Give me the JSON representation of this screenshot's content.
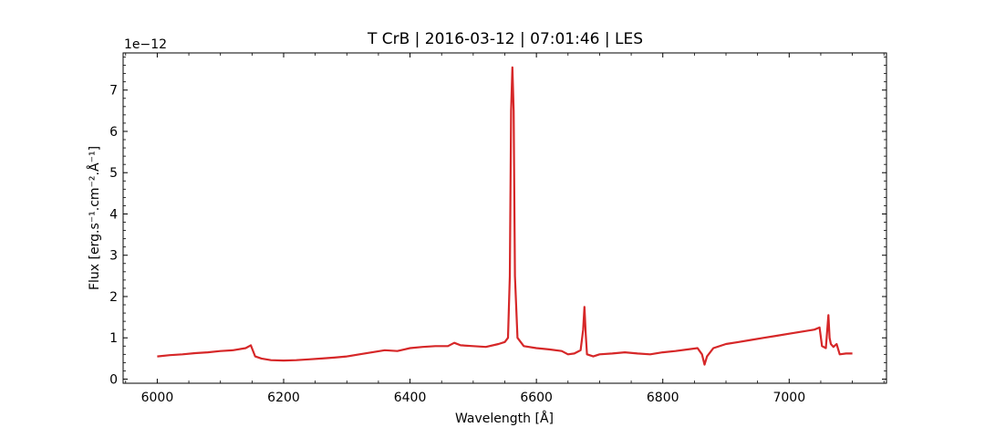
{
  "chart_data": {
    "type": "line",
    "title": "T CrB | 2016-03-12 | 07:01:46 | LES",
    "xlabel": "Wavelength [Å]",
    "ylabel": "Flux [erg.s⁻¹.cm⁻².Å⁻¹]",
    "y_offset_text": "1e−12",
    "xlim": [
      5946,
      7154
    ],
    "ylim": [
      -0.1,
      7.9
    ],
    "x_ticks": [
      6000,
      6200,
      6400,
      6600,
      6800,
      7000
    ],
    "y_ticks": [
      0,
      1,
      2,
      3,
      4,
      5,
      6,
      7
    ],
    "grid": false,
    "color": "#d62728",
    "series": [
      {
        "x": [
          6000,
          6020,
          6040,
          6060,
          6080,
          6100,
          6120,
          6140,
          6148,
          6155,
          6165,
          6180,
          6200,
          6220,
          6240,
          6260,
          6280,
          6300,
          6320,
          6340,
          6360,
          6380,
          6400,
          6420,
          6440,
          6460,
          6470,
          6480,
          6500,
          6520,
          6540,
          6550,
          6555,
          6558,
          6560,
          6562,
          6564,
          6566,
          6570,
          6580,
          6600,
          6620,
          6640,
          6650,
          6660,
          6670,
          6674,
          6676,
          6678,
          6680,
          6684,
          6690,
          6700,
          6720,
          6740,
          6760,
          6780,
          6800,
          6820,
          6840,
          6855,
          6862,
          6866,
          6870,
          6880,
          6900,
          6920,
          6940,
          6960,
          6980,
          7000,
          7020,
          7040,
          7048,
          7052,
          7058,
          7062,
          7064,
          7066,
          7070,
          7075,
          7080,
          7090,
          7100
        ],
        "y": [
          0.55,
          0.58,
          0.6,
          0.63,
          0.65,
          0.68,
          0.7,
          0.75,
          0.82,
          0.55,
          0.5,
          0.46,
          0.45,
          0.46,
          0.48,
          0.5,
          0.52,
          0.55,
          0.6,
          0.65,
          0.7,
          0.68,
          0.75,
          0.78,
          0.8,
          0.8,
          0.88,
          0.82,
          0.8,
          0.78,
          0.85,
          0.9,
          1.0,
          2.5,
          6.5,
          7.55,
          6.5,
          2.5,
          1.0,
          0.8,
          0.75,
          0.72,
          0.68,
          0.6,
          0.62,
          0.7,
          1.2,
          1.75,
          1.1,
          0.6,
          0.58,
          0.55,
          0.6,
          0.62,
          0.65,
          0.62,
          0.6,
          0.65,
          0.68,
          0.72,
          0.75,
          0.6,
          0.35,
          0.55,
          0.75,
          0.85,
          0.9,
          0.95,
          1.0,
          1.05,
          1.1,
          1.15,
          1.2,
          1.25,
          0.8,
          0.75,
          1.55,
          1.0,
          0.85,
          0.78,
          0.85,
          0.6,
          0.62,
          0.62
        ]
      }
    ]
  }
}
